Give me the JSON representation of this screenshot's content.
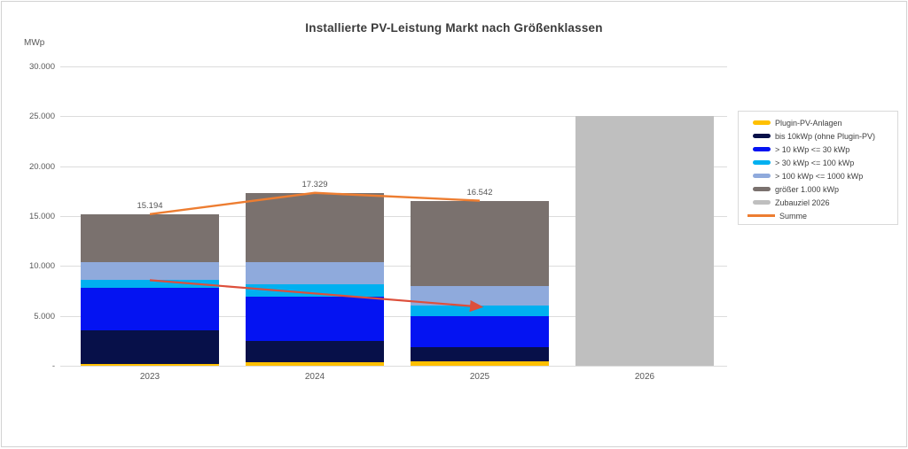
{
  "chart_data": {
    "type": "bar",
    "subtype": "stacked-column-with-line",
    "title": "Installierte PV-Leistung Markt nach Größenklassen",
    "unit_label": "MWp",
    "categories": [
      "2023",
      "2024",
      "2025",
      "2026"
    ],
    "series": [
      {
        "name": "Plugin-PV-Anlagen",
        "color": "#ffc000",
        "values": [
          150,
          350,
          400,
          0
        ]
      },
      {
        "name": "bis 10kWp (ohne Plugin-PV)",
        "color": "#071049",
        "values": [
          3400,
          2150,
          1450,
          0
        ]
      },
      {
        "name": "> 10 kWp <= 30 kWp",
        "color": "#0413f2",
        "values": [
          4250,
          4400,
          3150,
          0
        ]
      },
      {
        "name": "> 30 kWp <= 100 kWp",
        "color": "#00b0f0",
        "values": [
          850,
          1250,
          1050,
          0
        ]
      },
      {
        "name": "> 100 kWp <= 1000 kWp",
        "color": "#8faadc",
        "values": [
          1750,
          2250,
          1950,
          0
        ]
      },
      {
        "name": "größer 1.000 kWp",
        "color": "#7a716e",
        "values": [
          4794,
          6929,
          8542,
          0
        ]
      },
      {
        "name": "Zubauziel 2026",
        "color": "#bfbfbf",
        "values": [
          0,
          0,
          0,
          25000
        ]
      }
    ],
    "line_series": {
      "name": "Summe",
      "color": "#ed7d31",
      "values": [
        15194,
        17329,
        16542,
        null
      ]
    },
    "total_labels": [
      "15.194",
      "17.329",
      "16.542",
      ""
    ],
    "y_axis": {
      "max": 30000,
      "step": 5000,
      "tick_labels": [
        "-",
        "5.000",
        "10.000",
        "15.000",
        "20.000",
        "25.000",
        "30.000"
      ]
    },
    "annotation_arrow": {
      "color": "#dd4f3b",
      "from": {
        "category_index": 0,
        "value": 8575
      },
      "to": {
        "category_index": 2,
        "value": 5912
      }
    },
    "legend_position": "right",
    "grid": true
  }
}
